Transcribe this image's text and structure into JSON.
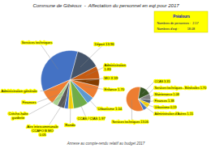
{
  "chart_data": [
    {
      "type": "pie",
      "title": "Commune de Gibéoux  -  Affectation du personnel en eqt pour 2017",
      "categories": [
        "Services techniques",
        "Administration générale",
        "Finances",
        "Crèche-halte\ngarderie",
        "Aire intercommunale\nCCAFO B MO\n0.05",
        "Rando",
        "CCAS / CIAS 1.97",
        "Urbanisme 1.04",
        "Enfance 1.70",
        "MO X 39",
        "Administration\n1.83",
        "Départ 13.96"
      ],
      "values": [
        35,
        8,
        3,
        4,
        2,
        3,
        8,
        4,
        7,
        4,
        7,
        13
      ],
      "colors": [
        "#4472C4",
        "#ED7D31",
        "#A9D18E",
        "#595959",
        "#4472C4",
        "#FFD700",
        "#70AD47",
        "#5B9BD5",
        "#ED7D31",
        "#833C00",
        "#C55A11",
        "#44546A"
      ],
      "annotations": [
        "Préalours",
        "Nombres de personnes :  2.17",
        "Nombres d'eqt :          18.08",
        "Annexe au compte-rendu relatif au budget 2017"
      ]
    },
    {
      "type": "pie",
      "categories": [
        "Services techniques 13.06",
        "Administration d'Autres 1.15",
        "Urbanisme 0.19",
        "Finances 1.38",
        "Maintenance 1.08",
        "Services techniques - Bénévoles 1.70",
        "CCAS 3.35"
      ],
      "values": [
        13.06,
        1.15,
        0.19,
        1.38,
        1.08,
        1.7,
        3.35
      ],
      "colors": [
        "#ED7D31",
        "#4472C4",
        "#70AD47",
        "#FFD700",
        "#44546A",
        "#808080",
        "#375623"
      ]
    }
  ]
}
